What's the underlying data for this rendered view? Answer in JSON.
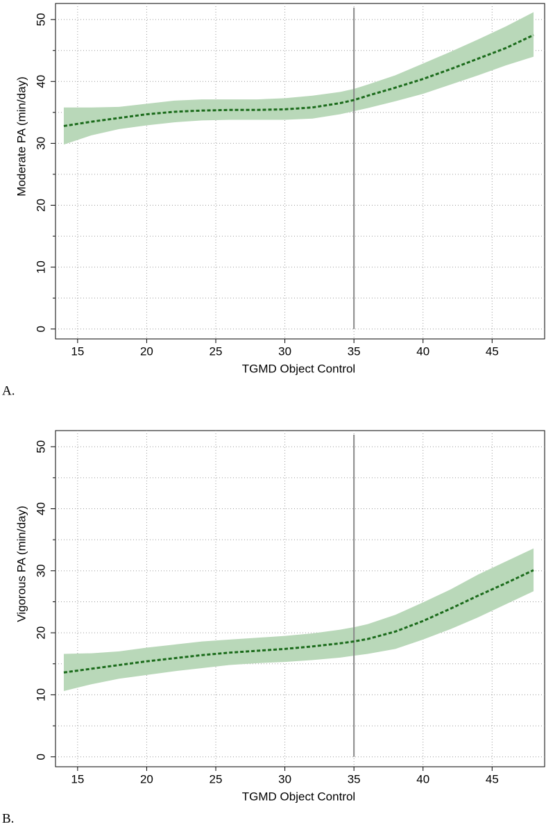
{
  "chart_data": [
    {
      "type": "line",
      "panel_label": "A.",
      "xlabel": "TGMD Object Control",
      "ylabel": "Moderate PA (min/day)",
      "x": [
        14,
        16,
        18,
        20,
        22,
        24,
        26,
        28,
        30,
        32,
        34,
        35,
        36,
        38,
        40,
        42,
        44,
        46,
        48
      ],
      "series": [
        {
          "color": "#1b6b1b",
          "values": [
            32.8,
            33.5,
            34.1,
            34.7,
            35.1,
            35.3,
            35.4,
            35.4,
            35.5,
            35.8,
            36.5,
            37.0,
            37.7,
            39.0,
            40.4,
            42.0,
            43.7,
            45.4,
            47.5
          ]
        }
      ],
      "band": {
        "color": "#b9d8b9",
        "lower": [
          29.8,
          31.3,
          32.3,
          32.9,
          33.4,
          33.7,
          33.8,
          33.8,
          33.8,
          34.0,
          34.7,
          35.2,
          35.7,
          36.8,
          38.0,
          39.5,
          41.0,
          42.6,
          44.0
        ],
        "upper": [
          35.8,
          35.8,
          35.9,
          36.4,
          36.9,
          37.1,
          37.1,
          37.1,
          37.3,
          37.7,
          38.3,
          38.8,
          39.5,
          41.0,
          42.9,
          44.8,
          46.8,
          48.9,
          51.2
        ]
      },
      "vline": 35,
      "xlim": [
        13.4,
        48.8
      ],
      "ylim": [
        -1.6,
        52.6
      ],
      "xticks": [
        15,
        20,
        25,
        30,
        35,
        40,
        45
      ],
      "yticks": [
        0,
        10,
        20,
        30,
        40,
        50
      ],
      "yminorticks": [
        5,
        15,
        25,
        35,
        45
      ],
      "grid": true
    },
    {
      "type": "line",
      "panel_label": "B.",
      "xlabel": "TGMD Object Control",
      "ylabel": "Vigorous PA (min/day)",
      "x": [
        14,
        16,
        18,
        20,
        22,
        24,
        26,
        28,
        30,
        32,
        34,
        35,
        36,
        38,
        40,
        42,
        44,
        46,
        48
      ],
      "series": [
        {
          "color": "#1b6b1b",
          "values": [
            13.6,
            14.2,
            14.8,
            15.4,
            15.9,
            16.4,
            16.8,
            17.1,
            17.4,
            17.8,
            18.3,
            18.6,
            19.0,
            20.2,
            21.9,
            23.9,
            26.0,
            28.0,
            30.1
          ]
        }
      ],
      "band": {
        "color": "#b9d8b9",
        "lower": [
          10.6,
          11.7,
          12.6,
          13.2,
          13.8,
          14.3,
          14.8,
          15.1,
          15.3,
          15.6,
          16.0,
          16.3,
          16.6,
          17.4,
          18.9,
          20.6,
          22.5,
          24.6,
          26.7
        ],
        "upper": [
          16.6,
          16.7,
          17.0,
          17.6,
          18.1,
          18.6,
          18.9,
          19.2,
          19.5,
          19.9,
          20.5,
          20.9,
          21.4,
          22.9,
          24.9,
          27.0,
          29.4,
          31.5,
          33.6
        ]
      },
      "vline": 35,
      "xlim": [
        13.4,
        48.8
      ],
      "ylim": [
        -1.6,
        52.6
      ],
      "xticks": [
        15,
        20,
        25,
        30,
        35,
        40,
        45
      ],
      "yticks": [
        0,
        10,
        20,
        30,
        40,
        50
      ],
      "yminorticks": [
        5,
        15,
        25,
        35,
        45
      ],
      "grid": true
    }
  ]
}
